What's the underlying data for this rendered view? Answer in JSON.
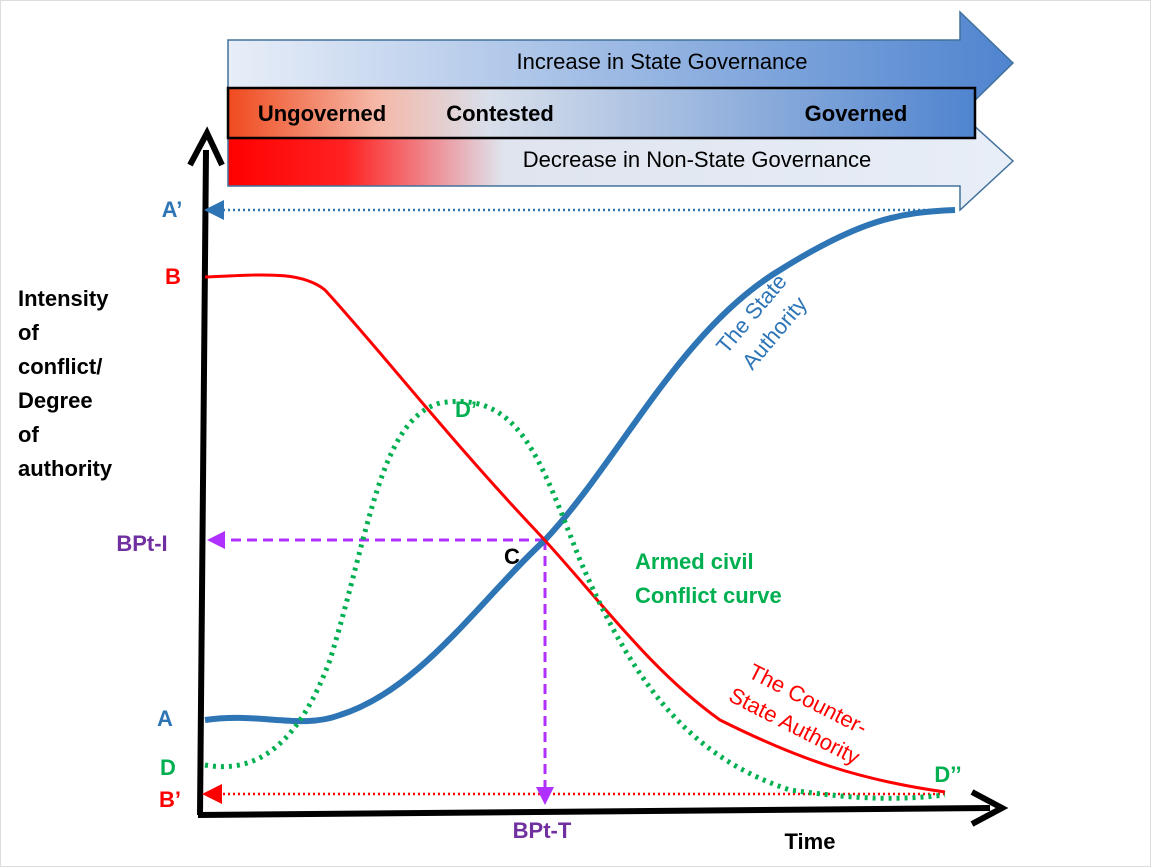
{
  "header": {
    "increase": "Increase in State Governance",
    "zones": [
      "Ungoverned",
      "Contested",
      "Governed"
    ],
    "decrease": "Decrease in Non-State Governance"
  },
  "axes": {
    "y_label": [
      "Intensity",
      "of",
      "conflict/",
      "Degree",
      "of",
      "authority"
    ],
    "x_label": "Time"
  },
  "points": {
    "a_prime": "A’",
    "b": "B",
    "a": "A",
    "d": "D",
    "b_prime": "B’",
    "d_prime": "D’",
    "d_double": "D’’",
    "c": "C",
    "bpt_i": "BPt-I",
    "bpt_t": "BPt-T"
  },
  "curves": {
    "state": [
      "The State",
      "Authority"
    ],
    "conflict": [
      "Armed civil",
      "Conflict curve"
    ],
    "counter": [
      "The Counter-",
      "State Authority"
    ]
  }
}
